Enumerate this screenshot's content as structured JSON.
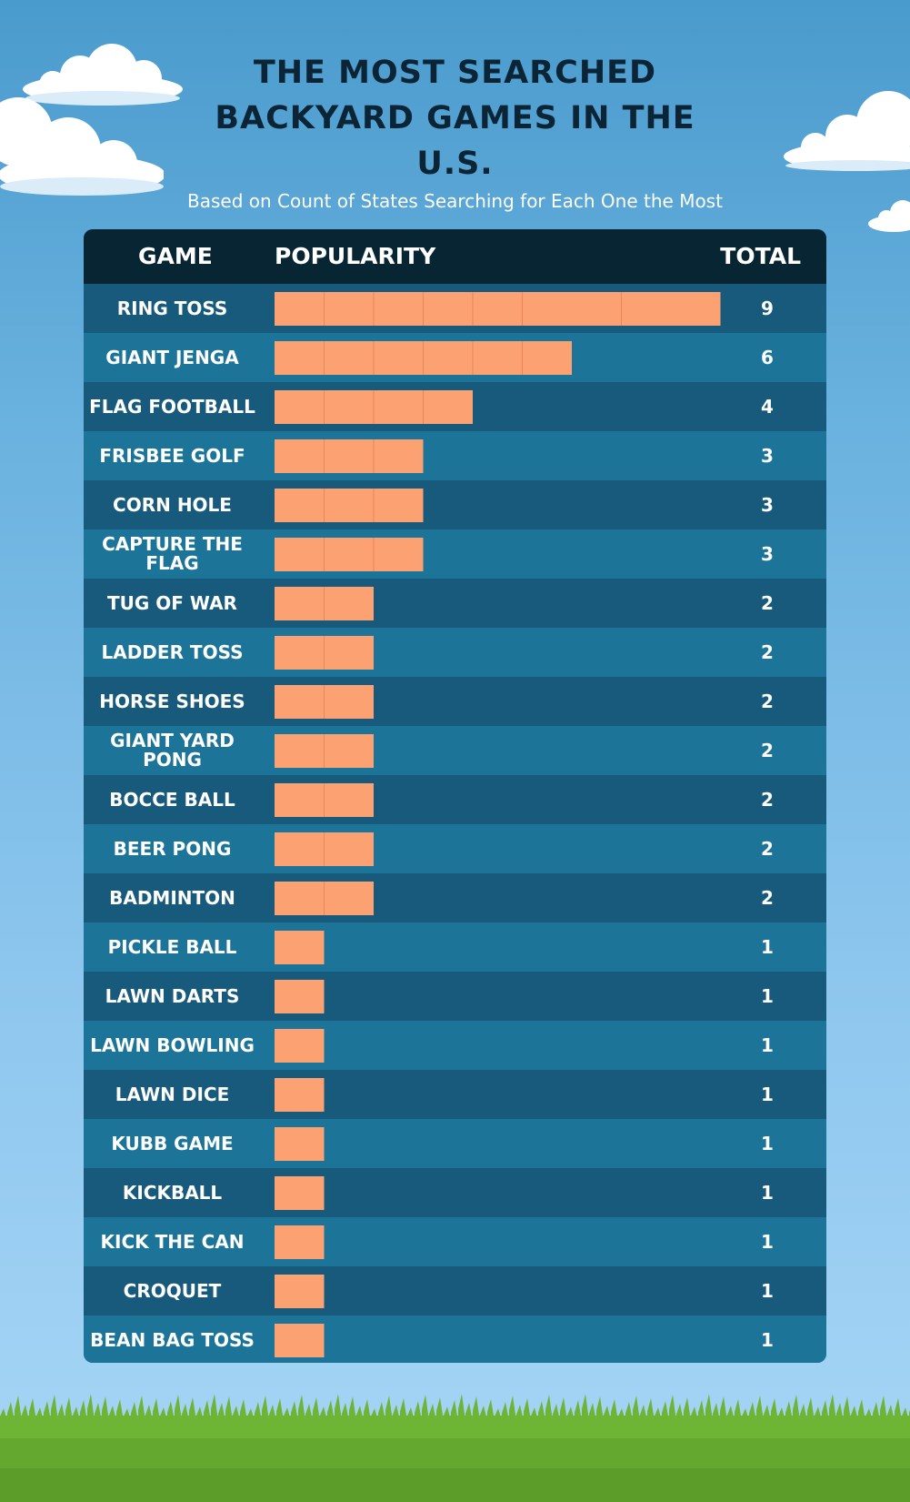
{
  "chart_data": {
    "type": "bar",
    "orientation": "horizontal",
    "title": "THE MOST SEARCHED BACKYARD GAMES IN THE U.S.",
    "subtitle": "Based on Count of States Searching for Each One the Most",
    "columns": {
      "game": "GAME",
      "popularity": "POPULARITY",
      "total": "TOTAL"
    },
    "categories": [
      "RING TOSS",
      "GIANT JENGA",
      "FLAG FOOTBALL",
      "FRISBEE GOLF",
      "CORN HOLE",
      "CAPTURE THE FLAG",
      "TUG OF WAR",
      "LADDER TOSS",
      "HORSE SHOES",
      "GIANT YARD PONG",
      "BOCCE BALL",
      "BEER PONG",
      "BADMINTON",
      "PICKLE BALL",
      "LAWN DARTS",
      "LAWN BOWLING",
      "LAWN DICE",
      "KUBB GAME",
      "KICKBALL",
      "KICK THE CAN",
      "CROQUET",
      "BEAN BAG TOSS"
    ],
    "values": [
      9,
      6,
      4,
      3,
      3,
      3,
      2,
      2,
      2,
      2,
      2,
      2,
      2,
      1,
      1,
      1,
      1,
      1,
      1,
      1,
      1,
      1
    ],
    "xlim": [
      0,
      9
    ],
    "colors": {
      "bar": "#fca272",
      "bar_divider": "#e8875a",
      "row_dark": "#175a7b",
      "row_light": "#1c7599",
      "header": "#082533",
      "title": "#0b2536"
    }
  }
}
